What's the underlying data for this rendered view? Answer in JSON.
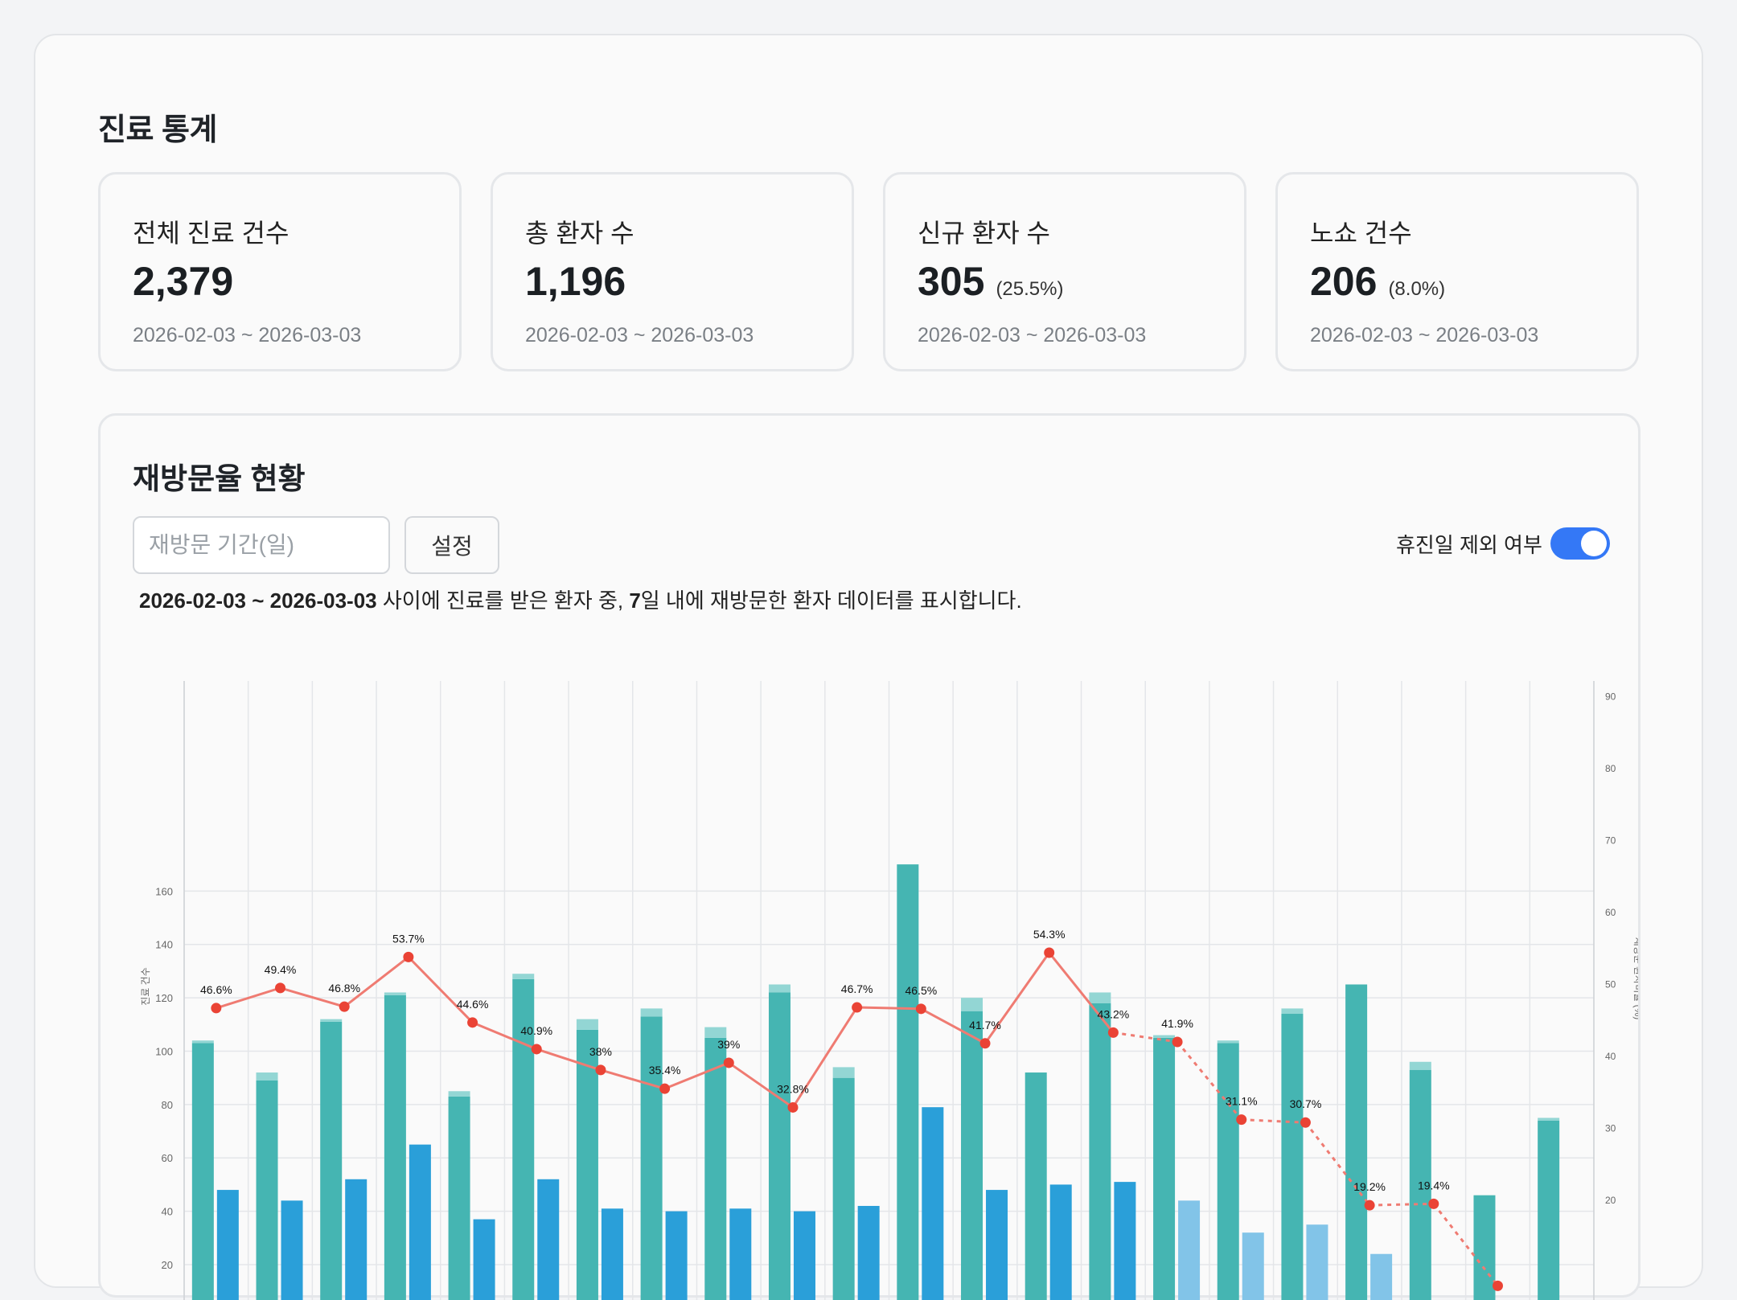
{
  "page": {
    "title": "진료 통계"
  },
  "cards": [
    {
      "label": "전체 진료 건수",
      "value": "2,379",
      "sub": "",
      "range": "2026-02-03 ~ 2026-03-03"
    },
    {
      "label": "총 환자 수",
      "value": "1,196",
      "sub": "",
      "range": "2026-02-03 ~ 2026-03-03"
    },
    {
      "label": "신규 환자 수",
      "value": "305",
      "sub": "(25.5%)",
      "range": "2026-02-03 ~ 2026-03-03"
    },
    {
      "label": "노쇼 건수",
      "value": "206",
      "sub": "(8.0%)",
      "range": "2026-02-03 ~ 2026-03-03"
    }
  ],
  "revisit": {
    "title": "재방문율 현황",
    "input_placeholder": "재방문 기간(일)",
    "set_label": "설정",
    "toggle_label": "휴진일 제외 여부",
    "toggle_on": true,
    "desc_range": "2026-02-03 ~ 2026-03-03",
    "desc_mid": " 사이에 진료를 받은 환자 중, ",
    "desc_days": "7",
    "desc_end": "일 내에 재방문한 환자 데이터를 표시합니다."
  },
  "colors": {
    "teal": "#45b5b2",
    "teal_light": "#93d6d4",
    "blue": "#2a9fd9",
    "blue_light": "#82c4e8",
    "line": "#ef7b72",
    "point": "#ea4335",
    "toggle": "#3478f6"
  },
  "chart_data": {
    "type": "bar",
    "y_left": {
      "label": "진료 건수",
      "ticks": [
        20,
        40,
        60,
        80,
        100,
        120,
        140,
        160
      ]
    },
    "y_right": {
      "label": "재방문 환자비율 (%)",
      "ticks": [
        20,
        30,
        40,
        50,
        60,
        70,
        80,
        90
      ]
    },
    "series": [
      {
        "type": "bar",
        "values": [
          103,
          89,
          111,
          121,
          83,
          127,
          108,
          113,
          105,
          122,
          90,
          170,
          115,
          92,
          118,
          105,
          103,
          114,
          125,
          93,
          46,
          74
        ],
        "extra": [
          1,
          3,
          1,
          1,
          2,
          2,
          4,
          3,
          4,
          3,
          4,
          0,
          5,
          0,
          4,
          1,
          1,
          2,
          0,
          3,
          0,
          1
        ]
      },
      {
        "type": "bar",
        "values": [
          48,
          44,
          52,
          65,
          37,
          52,
          41,
          40,
          41,
          40,
          42,
          79,
          48,
          50,
          51,
          44,
          32,
          35,
          24,
          null,
          null,
          null
        ],
        "light": [
          false,
          false,
          false,
          false,
          false,
          false,
          false,
          false,
          false,
          false,
          false,
          false,
          false,
          false,
          false,
          true,
          true,
          true,
          true,
          false,
          false,
          false
        ]
      },
      {
        "type": "line",
        "values": [
          46.6,
          49.4,
          46.8,
          53.7,
          44.6,
          40.9,
          38,
          35.4,
          39,
          32.8,
          46.7,
          46.5,
          41.7,
          54.3,
          43.2,
          41.9,
          31.1,
          30.7,
          19.2,
          19.4,
          8,
          null
        ],
        "labels": [
          "46.6%",
          "49.4%",
          "46.8%",
          "53.7%",
          "44.6%",
          "40.9%",
          "38%",
          "35.4%",
          "39%",
          "32.8%",
          "46.7%",
          "46.5%",
          "41.7%",
          "54.3%",
          "43.2%",
          "41.9%",
          "31.1%",
          "30.7%",
          "19.2%",
          "19.4%",
          "",
          ""
        ],
        "dashed_from": 14
      }
    ]
  }
}
